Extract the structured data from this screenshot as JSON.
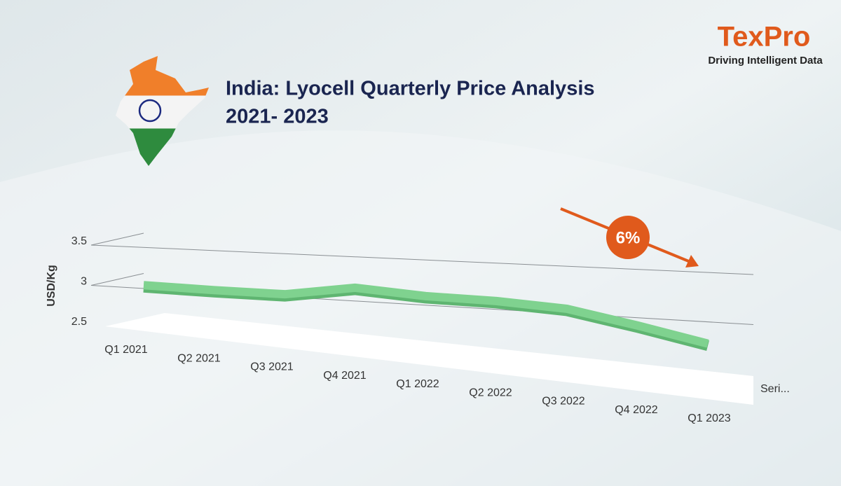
{
  "logo": {
    "name": "TexPro",
    "tagline": "Driving Intelligent Data"
  },
  "chart_data": {
    "type": "line3d",
    "title": [
      "India: Lyocell Quarterly Price Analysis",
      "2021- 2023"
    ],
    "y_label": "USD/Kg",
    "categories": [
      "Q1 2021",
      "Q2 2021",
      "Q3 2021",
      "Q4 2021",
      "Q1 2022",
      "Q2 2022",
      "Q3 2022",
      "Q4 2022",
      "Q1 2023"
    ],
    "series": [
      {
        "name": "Seri...",
        "color": "#7fd28f",
        "values": [
          3.04,
          3.03,
          3.03,
          3.15,
          3.1,
          3.09,
          3.05,
          2.92,
          2.78
        ]
      }
    ],
    "ylim": [
      2.5,
      3.5
    ],
    "yticks": [
      2.5,
      3,
      3.5
    ],
    "grid": true,
    "annotation": "6%",
    "annotation_color": "#e05a1c"
  }
}
